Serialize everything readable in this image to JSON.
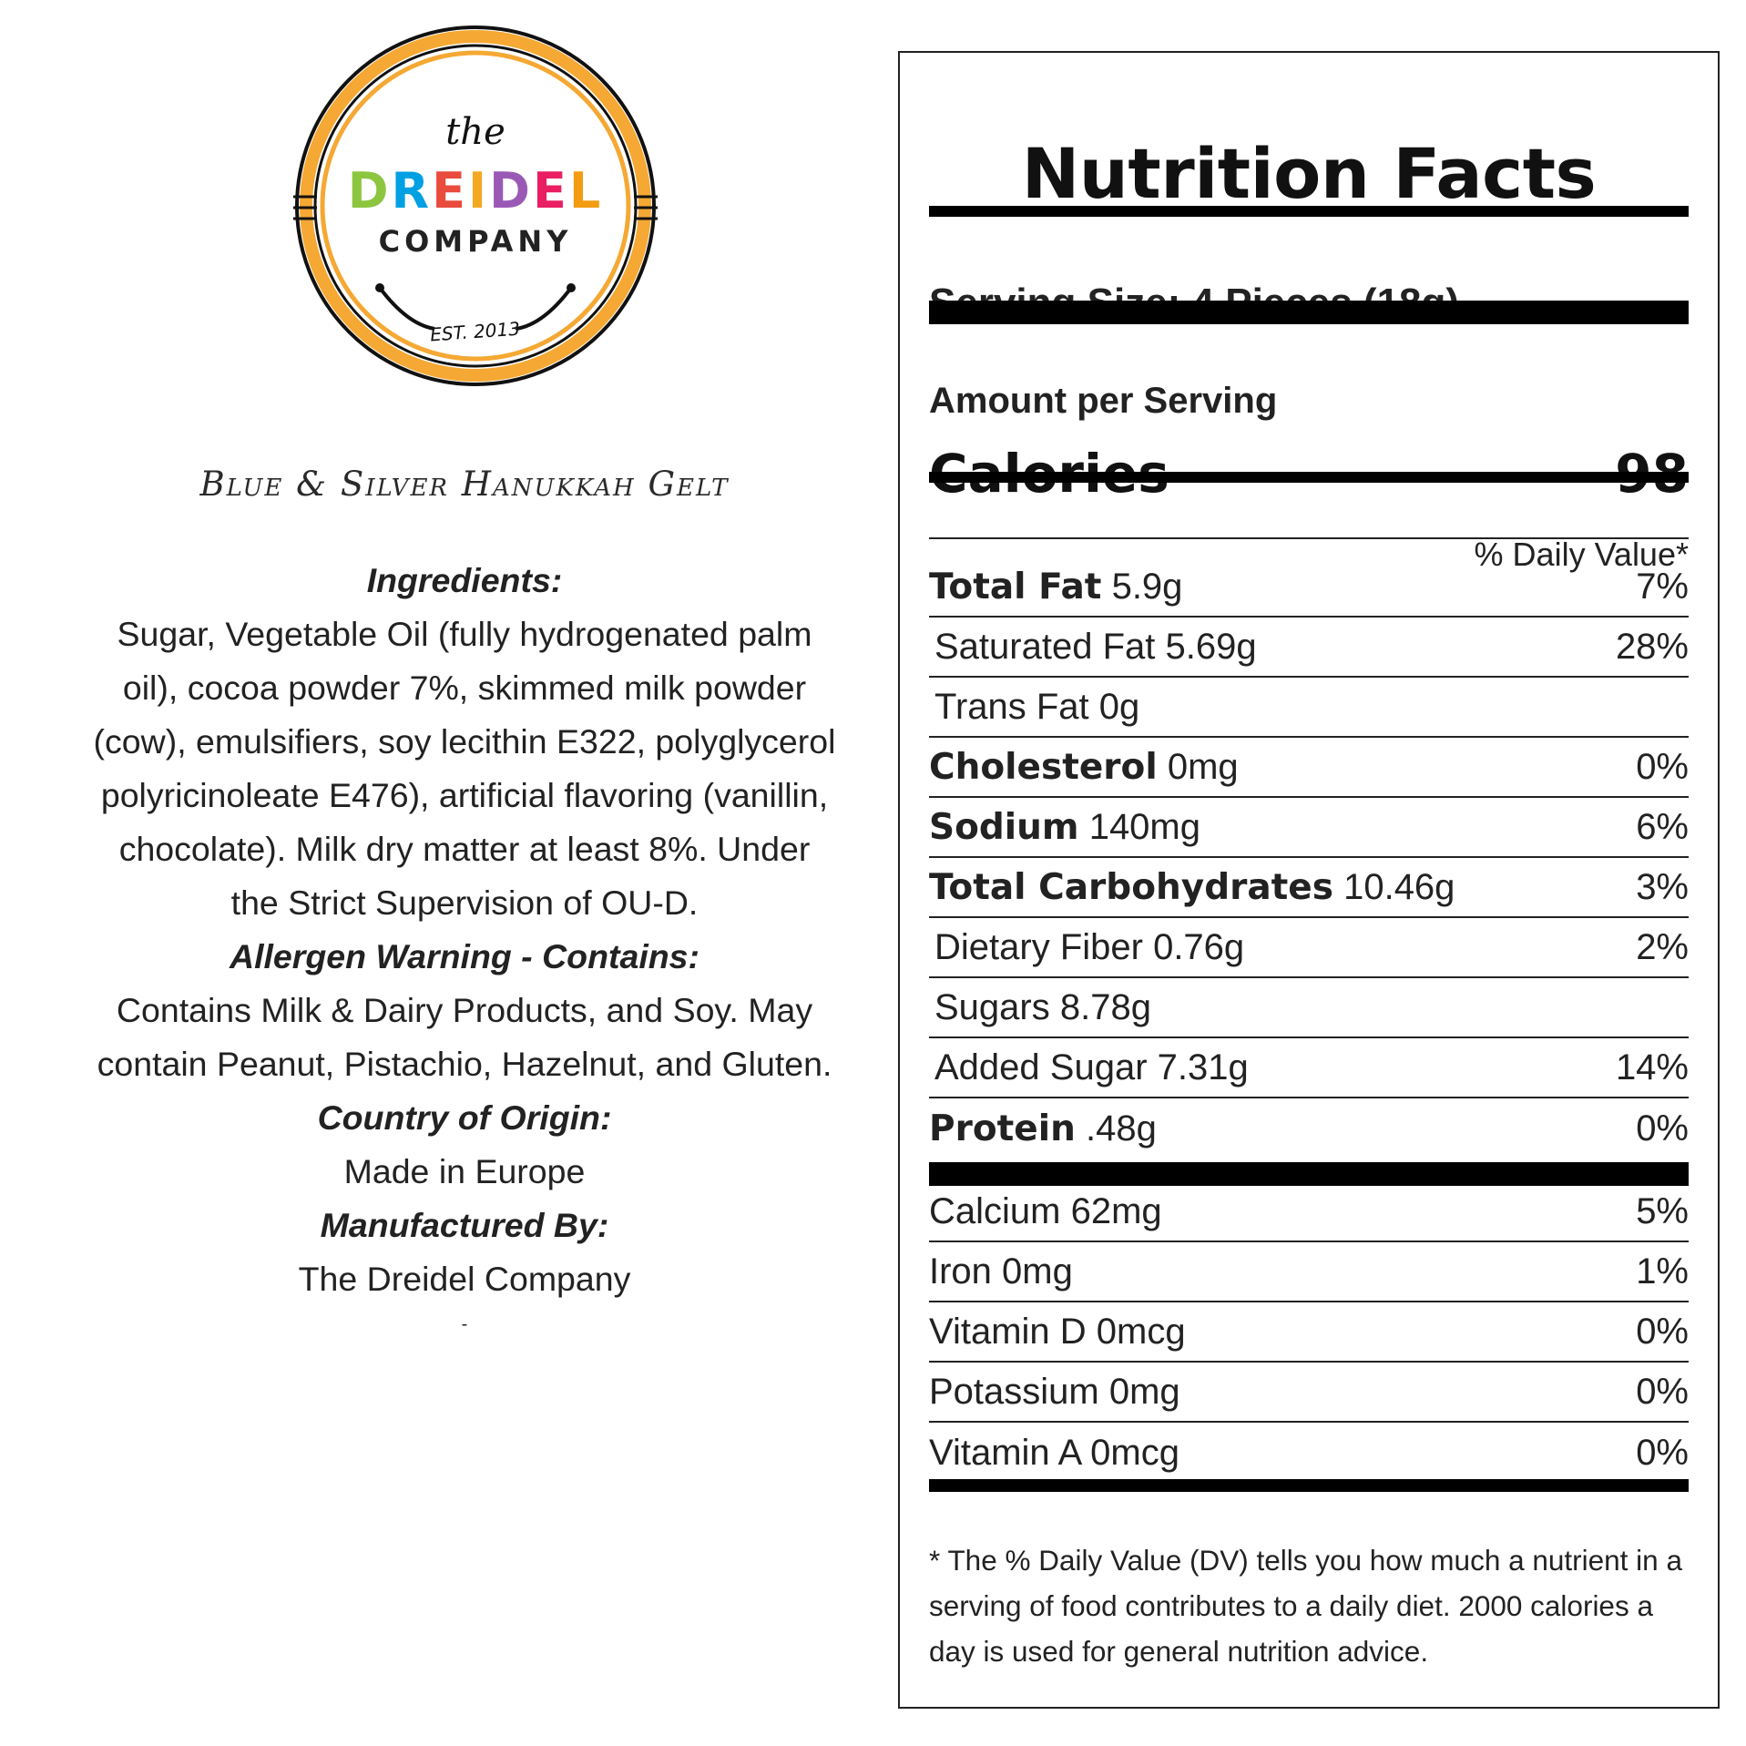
{
  "logo": {
    "the": "the",
    "brand": "DREIDEL",
    "company": "COMPANY",
    "est": "EST. 2013",
    "brand_colors": [
      "#8cc63f",
      "#00a0e3",
      "#e94b3c",
      "#f7a823",
      "#9b59b6",
      "#e91e63",
      "#f39c12"
    ],
    "ring_color": "#f5a833"
  },
  "product_title": "Blue & Silver Hanukkah Gelt",
  "info": {
    "ingredients_heading": "Ingredients:",
    "ingredients_text": "Sugar, Vegetable Oil (fully hydrogenated palm oil), cocoa powder 7%, skimmed milk powder (cow), emulsifiers, soy lecithin E322, polyglycerol polyricinoleate E476), artificial flavoring (vanillin, chocolate). Milk dry matter at least 8%. Under the Strict Supervision of OU-D.",
    "allergen_heading": "Allergen Warning - Contains:",
    "allergen_text": "Contains Milk & Dairy Products, and Soy. May contain Peanut, Pistachio, Hazelnut, and Gluten.",
    "origin_heading": "Country of Origin:",
    "origin_text": "Made in Europe",
    "manufacturer_heading": "Manufactured By:",
    "manufacturer_text": "The Dreidel Company",
    "trailing_mark": "-"
  },
  "nutrition": {
    "title": "Nutrition Facts",
    "serving_size": "Serving Size: 4 Pieces (18g)",
    "amount_per_serving": "Amount per Serving",
    "calories_label": "Calories",
    "calories_value": "98",
    "dv_header": "% Daily Value*",
    "rows": [
      {
        "name": "Total Fat",
        "amount": "5.9g",
        "dv": "7%"
      },
      {
        "name": "Saturated Fat",
        "amount": "5.69g",
        "dv": "28%"
      },
      {
        "name": "Trans Fat",
        "amount": "0g",
        "dv": ""
      },
      {
        "name": "Cholesterol",
        "amount": "0mg",
        "dv": "0%"
      },
      {
        "name": "Sodium",
        "amount": "140mg",
        "dv": "6%"
      },
      {
        "name": "Total Carbohydrates",
        "amount": "10.46g",
        "dv": "3%"
      },
      {
        "name": "Dietary Fiber",
        "amount": "0.76g",
        "dv": "2%"
      },
      {
        "name": "Sugars",
        "amount": "8.78g",
        "dv": ""
      },
      {
        "name": "Added Sugar",
        "amount": "7.31g",
        "dv": "14%"
      },
      {
        "name": "Protein",
        "amount": ".48g",
        "dv": "0%"
      }
    ],
    "vitamins": [
      {
        "name": "Calcium",
        "amount": "62mg",
        "dv": "5%"
      },
      {
        "name": "Iron",
        "amount": "0mg",
        "dv": "1%"
      },
      {
        "name": "Vitamin D",
        "amount": "0mcg",
        "dv": "0%"
      },
      {
        "name": "Potassium",
        "amount": "0mg",
        "dv": "0%"
      },
      {
        "name": "Vitamin A",
        "amount": "0mcg",
        "dv": "0%"
      }
    ],
    "footnote": "* The % Daily Value (DV) tells you how much a nutrient in a serving of food contributes to a daily diet. 2000 calories a day is used for general nutrition advice."
  }
}
